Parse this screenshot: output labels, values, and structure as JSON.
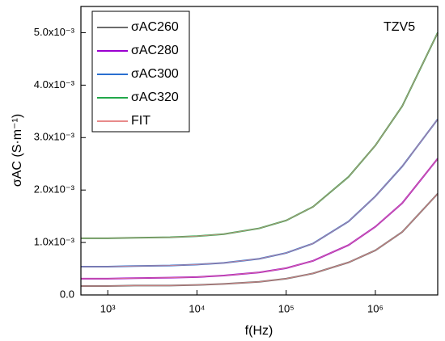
{
  "chart_data": {
    "type": "line",
    "annotation": "TZV5",
    "x_label": "f(Hz)",
    "y_label": "σAC (S·m⁻¹)",
    "x": [
      500,
      1000,
      2000,
      5000,
      10000,
      20000,
      50000,
      100000,
      200000,
      500000,
      1000000,
      2000000,
      5000000
    ],
    "series": [
      {
        "name": "σAC260",
        "color": "#6b6b6b",
        "values": [
          0.00017,
          0.00017,
          0.00018,
          0.00018,
          0.00019,
          0.00021,
          0.00025,
          0.00031,
          0.00041,
          0.00062,
          0.00085,
          0.0012,
          0.00193
        ]
      },
      {
        "name": "σAC280",
        "color": "#9b00d0",
        "values": [
          0.00031,
          0.00031,
          0.00032,
          0.00033,
          0.00034,
          0.00037,
          0.00043,
          0.00051,
          0.00065,
          0.00095,
          0.0013,
          0.00175,
          0.0026
        ]
      },
      {
        "name": "σAC300",
        "color": "#2a6fd0",
        "values": [
          0.00054,
          0.00054,
          0.00055,
          0.00056,
          0.00058,
          0.00061,
          0.00069,
          0.0008,
          0.00098,
          0.0014,
          0.00188,
          0.00245,
          0.00335
        ]
      },
      {
        "name": "σAC320",
        "color": "#22a84a",
        "values": [
          0.00108,
          0.00108,
          0.00109,
          0.0011,
          0.00112,
          0.00116,
          0.00127,
          0.00142,
          0.00168,
          0.00225,
          0.00285,
          0.0036,
          0.005
        ]
      }
    ],
    "fit": {
      "name": "FIT",
      "color": "#e88a8a"
    },
    "xlog": true,
    "xlim": [
      500,
      5000000
    ],
    "xticks": [
      {
        "value": 1000,
        "label": "10³"
      },
      {
        "value": 10000,
        "label": "10⁴"
      },
      {
        "value": 100000,
        "label": "10⁵"
      },
      {
        "value": 1000000,
        "label": "10⁶"
      }
    ],
    "ylim": [
      0,
      0.0055
    ],
    "yticks": [
      {
        "value": 0,
        "label": "0.0"
      },
      {
        "value": 0.001,
        "label": "1.0x10⁻³"
      },
      {
        "value": 0.002,
        "label": "2.0x10⁻³"
      },
      {
        "value": 0.003,
        "label": "3.0x10⁻³"
      },
      {
        "value": 0.004,
        "label": "4.0x10⁻³"
      },
      {
        "value": 0.005,
        "label": "5.0x10⁻³"
      }
    ],
    "legend": "upper left"
  }
}
